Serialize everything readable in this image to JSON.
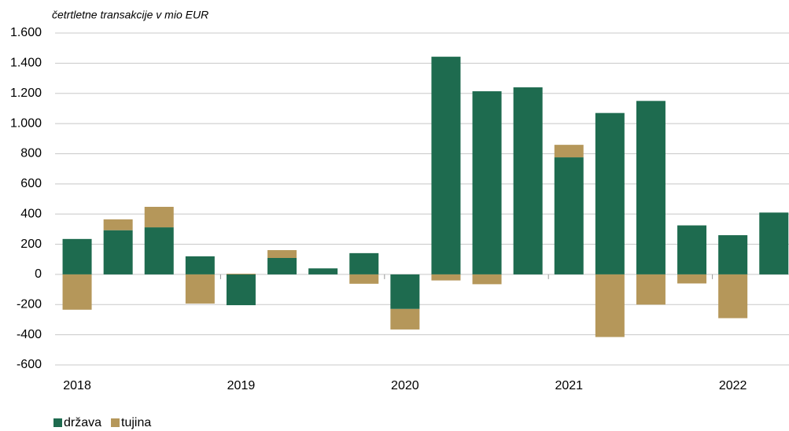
{
  "chart_data": {
    "type": "bar",
    "stacked": true,
    "subtitle": "četrtletne transakcije v mio EUR",
    "categories": [
      "2018",
      null,
      null,
      null,
      "2019",
      null,
      null,
      null,
      "2020",
      null,
      null,
      null,
      "2021",
      null,
      null,
      null,
      "2022",
      null
    ],
    "series": [
      {
        "name": "država",
        "color": "#1e6b4f",
        "values": [
          235,
          293,
          312,
          120,
          -204,
          109,
          40,
          141,
          -229,
          1443,
          1214,
          1240,
          776,
          1070,
          1150,
          325,
          260,
          410
        ]
      },
      {
        "name": "tujina",
        "color": "#b5975a",
        "values": [
          -234,
          72,
          136,
          -193,
          5,
          52,
          0,
          -62,
          -136,
          -40,
          -65,
          0,
          83,
          -415,
          -200,
          -60,
          -290,
          0
        ]
      }
    ],
    "ylim": [
      -600,
      1600
    ],
    "yticks": [
      -600,
      -400,
      -200,
      0,
      200,
      400,
      600,
      800,
      {
        "value": 1000,
        "label": "1.000"
      },
      {
        "value": 1200,
        "label": "1.200"
      },
      {
        "value": 1400,
        "label": "1.400"
      },
      {
        "value": 1600,
        "label": "1.600"
      }
    ],
    "grid": true,
    "legend": "bottom-left"
  }
}
